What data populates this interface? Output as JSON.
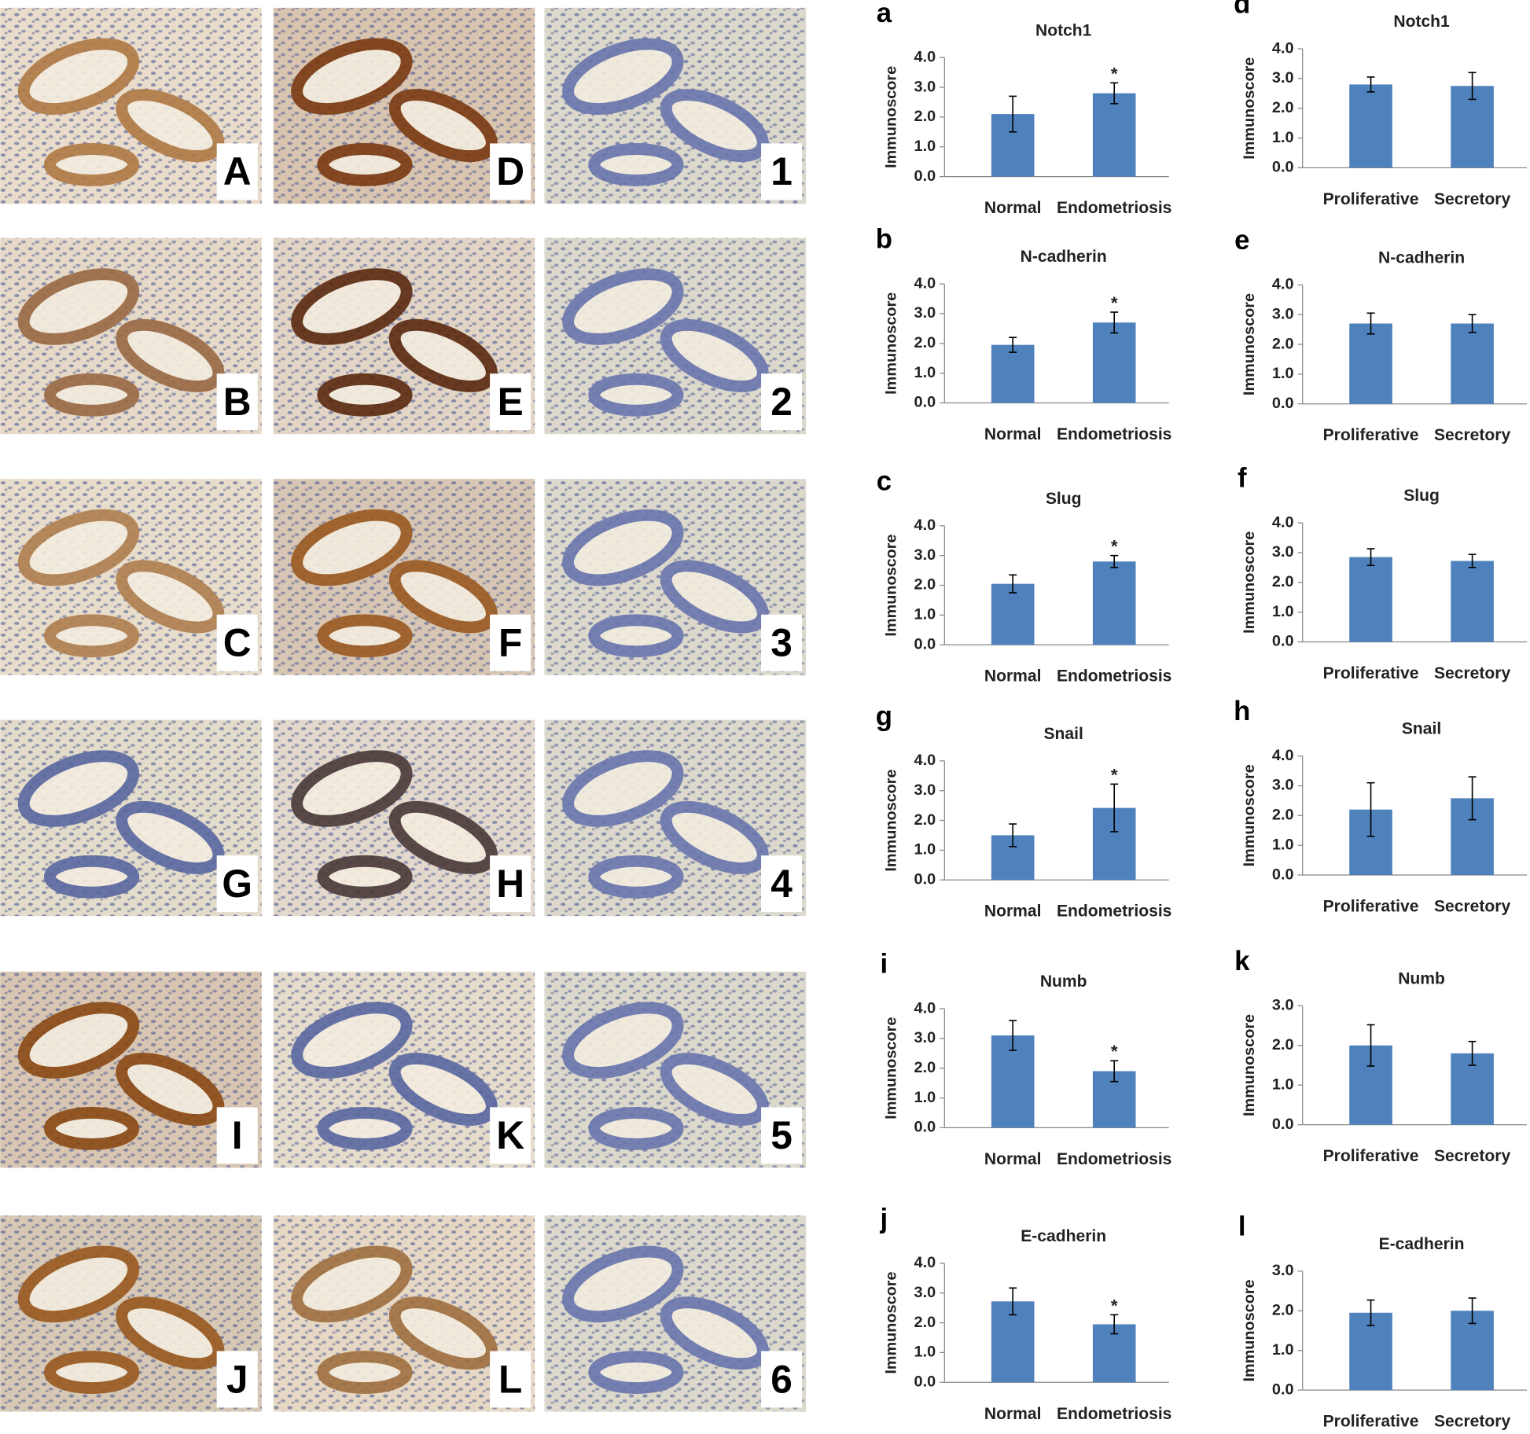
{
  "micrographs": [
    "A",
    "D",
    "1",
    "B",
    "E",
    "2",
    "C",
    "F",
    "3",
    "G",
    "H",
    "4",
    "I",
    "K",
    "5",
    "J",
    "L",
    "6"
  ],
  "chart_data": [
    {
      "type": "bar",
      "label": "a",
      "title": "Notch1",
      "y_label": "Immunoscore",
      "categories": [
        "Normal",
        "Endometriosis"
      ],
      "series": [
        {
          "color": "#4f81bd",
          "values": [
            2.1,
            2.8
          ],
          "errors": [
            0.6,
            0.35
          ]
        }
      ],
      "ylim": [
        0,
        4
      ],
      "yticks": [
        {
          "value": 0,
          "label": "0.0"
        },
        {
          "value": 1,
          "label": "1.0"
        },
        {
          "value": 2,
          "label": "2.0"
        },
        {
          "value": 3,
          "label": "3.0"
        },
        {
          "value": 4,
          "label": "4.0"
        }
      ],
      "annotations": [
        {
          "text": "*",
          "category": "Endometriosis"
        }
      ]
    },
    {
      "type": "bar",
      "label": "d",
      "title": "Notch1",
      "y_label": "Immunoscore",
      "categories": [
        "Proliferative",
        "Secretory"
      ],
      "series": [
        {
          "color": "#4f81bd",
          "values": [
            2.8,
            2.75
          ],
          "errors": [
            0.25,
            0.45
          ]
        }
      ],
      "ylim": [
        0,
        4
      ],
      "yticks": [
        {
          "value": 0,
          "label": "0.0"
        },
        {
          "value": 1,
          "label": "1.0"
        },
        {
          "value": 2,
          "label": "2.0"
        },
        {
          "value": 3,
          "label": "3.0"
        },
        {
          "value": 4,
          "label": "4.0"
        }
      ]
    },
    {
      "type": "bar",
      "label": "b",
      "title": "N-cadherin",
      "y_label": "Immunoscore",
      "categories": [
        "Normal",
        "Endometriosis"
      ],
      "series": [
        {
          "color": "#4f81bd",
          "values": [
            1.95,
            2.7
          ],
          "errors": [
            0.25,
            0.35
          ]
        }
      ],
      "ylim": [
        0,
        4
      ],
      "yticks": [
        {
          "value": 0,
          "label": "0.0"
        },
        {
          "value": 1,
          "label": "1.0"
        },
        {
          "value": 2,
          "label": "2.0"
        },
        {
          "value": 3,
          "label": "3.0"
        },
        {
          "value": 4,
          "label": "4.0"
        }
      ],
      "annotations": [
        {
          "text": "*",
          "category": "Endometriosis"
        }
      ]
    },
    {
      "type": "bar",
      "label": "e",
      "title": "N-cadherin",
      "y_label": "Immunoscore",
      "categories": [
        "Proliferative",
        "Secretory"
      ],
      "series": [
        {
          "color": "#4f81bd",
          "values": [
            2.7,
            2.7
          ],
          "errors": [
            0.35,
            0.3
          ]
        }
      ],
      "ylim": [
        0,
        4
      ],
      "yticks": [
        {
          "value": 0,
          "label": "0.0"
        },
        {
          "value": 1,
          "label": "1.0"
        },
        {
          "value": 2,
          "label": "2.0"
        },
        {
          "value": 3,
          "label": "3.0"
        },
        {
          "value": 4,
          "label": "4.0"
        }
      ]
    },
    {
      "type": "bar",
      "label": "c",
      "title": "Slug",
      "y_label": "Immunoscore",
      "categories": [
        "Normal",
        "Endometriosis"
      ],
      "series": [
        {
          "color": "#4f81bd",
          "values": [
            2.05,
            2.8
          ],
          "errors": [
            0.3,
            0.2
          ]
        }
      ],
      "ylim": [
        0,
        4
      ],
      "yticks": [
        {
          "value": 0,
          "label": "0.0"
        },
        {
          "value": 1,
          "label": "1.0"
        },
        {
          "value": 2,
          "label": "2.0"
        },
        {
          "value": 3,
          "label": "3.0"
        },
        {
          "value": 4,
          "label": "4.0"
        }
      ],
      "annotations": [
        {
          "text": "*",
          "category": "Endometriosis"
        }
      ]
    },
    {
      "type": "bar",
      "label": "f",
      "title": "Slug",
      "y_label": "Immunoscore",
      "categories": [
        "Proliferative",
        "Secretory"
      ],
      "series": [
        {
          "color": "#4f81bd",
          "values": [
            2.85,
            2.72
          ],
          "errors": [
            0.28,
            0.22
          ]
        }
      ],
      "ylim": [
        0,
        4
      ],
      "yticks": [
        {
          "value": 0,
          "label": "0.0"
        },
        {
          "value": 1,
          "label": "1.0"
        },
        {
          "value": 2,
          "label": "2.0"
        },
        {
          "value": 3,
          "label": "3.0"
        },
        {
          "value": 4,
          "label": "4.0"
        }
      ]
    },
    {
      "type": "bar",
      "label": "g",
      "title": "Snail",
      "y_label": "Immunoscore",
      "categories": [
        "Normal",
        "Endometriosis"
      ],
      "series": [
        {
          "color": "#4f81bd",
          "values": [
            1.5,
            2.42
          ],
          "errors": [
            0.38,
            0.8
          ]
        }
      ],
      "ylim": [
        0,
        4
      ],
      "yticks": [
        {
          "value": 0,
          "label": "0.0"
        },
        {
          "value": 1,
          "label": "1.0"
        },
        {
          "value": 2,
          "label": "2.0"
        },
        {
          "value": 3,
          "label": "3.0"
        },
        {
          "value": 4,
          "label": "4.0"
        }
      ],
      "annotations": [
        {
          "text": "*",
          "category": "Endometriosis"
        }
      ]
    },
    {
      "type": "bar",
      "label": "h",
      "title": "Snail",
      "y_label": "Immunoscore",
      "categories": [
        "Proliferative",
        "Secretory"
      ],
      "series": [
        {
          "color": "#4f81bd",
          "values": [
            2.2,
            2.58
          ],
          "errors": [
            0.9,
            0.72
          ]
        }
      ],
      "ylim": [
        0,
        4
      ],
      "yticks": [
        {
          "value": 0,
          "label": "0.0"
        },
        {
          "value": 1,
          "label": "1.0"
        },
        {
          "value": 2,
          "label": "2.0"
        },
        {
          "value": 3,
          "label": "3.0"
        },
        {
          "value": 4,
          "label": "4.0"
        }
      ]
    },
    {
      "type": "bar",
      "label": "i",
      "title": "Numb",
      "y_label": "Immunoscore",
      "categories": [
        "Normal",
        "Endometriosis"
      ],
      "series": [
        {
          "color": "#4f81bd",
          "values": [
            3.1,
            1.9
          ],
          "errors": [
            0.5,
            0.35
          ]
        }
      ],
      "ylim": [
        0,
        4
      ],
      "yticks": [
        {
          "value": 0,
          "label": "0.0"
        },
        {
          "value": 1,
          "label": "1.0"
        },
        {
          "value": 2,
          "label": "2.0"
        },
        {
          "value": 3,
          "label": "3.0"
        },
        {
          "value": 4,
          "label": "4.0"
        }
      ],
      "annotations": [
        {
          "text": "*",
          "category": "Endometriosis"
        }
      ]
    },
    {
      "type": "bar",
      "label": "k",
      "title": "Numb",
      "y_label": "Immunoscore",
      "categories": [
        "Proliferative",
        "Secretory"
      ],
      "series": [
        {
          "color": "#4f81bd",
          "values": [
            2.0,
            1.8
          ],
          "errors": [
            0.52,
            0.3
          ]
        }
      ],
      "ylim": [
        0,
        3
      ],
      "yticks": [
        {
          "value": 0,
          "label": "0.0"
        },
        {
          "value": 1,
          "label": "1.0"
        },
        {
          "value": 2,
          "label": "2.0"
        },
        {
          "value": 3,
          "label": "3.0"
        }
      ]
    },
    {
      "type": "bar",
      "label": "j",
      "title": "E-cadherin",
      "y_label": "Immunoscore",
      "categories": [
        "Normal",
        "Endometriosis"
      ],
      "series": [
        {
          "color": "#4f81bd",
          "values": [
            2.72,
            1.95
          ],
          "errors": [
            0.45,
            0.32
          ]
        }
      ],
      "ylim": [
        0,
        4
      ],
      "yticks": [
        {
          "value": 0,
          "label": "0.0"
        },
        {
          "value": 1,
          "label": "1.0"
        },
        {
          "value": 2,
          "label": "2.0"
        },
        {
          "value": 3,
          "label": "3.0"
        },
        {
          "value": 4,
          "label": "4.0"
        }
      ],
      "annotations": [
        {
          "text": "*",
          "category": "Endometriosis"
        }
      ]
    },
    {
      "type": "bar",
      "label": "l",
      "title": "E-cadherin",
      "y_label": "Immunoscore",
      "categories": [
        "Proliferative",
        "Secretory"
      ],
      "series": [
        {
          "color": "#4f81bd",
          "values": [
            1.95,
            2.0
          ],
          "errors": [
            0.32,
            0.32
          ]
        }
      ],
      "ylim": [
        0,
        3
      ],
      "yticks": [
        {
          "value": 0,
          "label": "0.0"
        },
        {
          "value": 1,
          "label": "1.0"
        },
        {
          "value": 2,
          "label": "2.0"
        },
        {
          "value": 3,
          "label": "3.0"
        }
      ]
    }
  ]
}
